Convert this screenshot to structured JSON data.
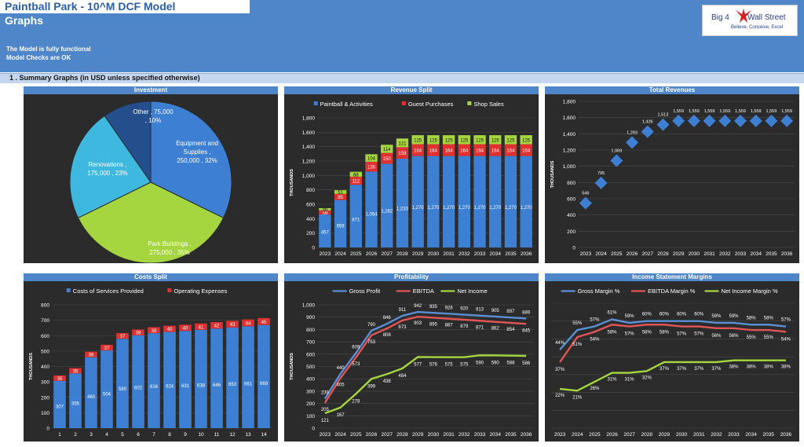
{
  "header": {
    "title": "Paintball Park - 10^M DCF Model",
    "subtitle": "Graphs",
    "status_line_1": "The Model is fully functional",
    "status_line_2": "Model Checks are OK",
    "logo": {
      "left_text": "Big 4",
      "right_text": "Wall Street",
      "tagline": "Believe, Conceive, Excel",
      "icon": "eagle-icon",
      "color": "#1f3e8f",
      "accent": "#d42020"
    },
    "color": "#4f85c9"
  },
  "section": {
    "title": "1 .  Summary Graphs (in USD unless specified otherwise)"
  },
  "panels": {
    "investment": {
      "title": "Investment"
    },
    "revenue_split": {
      "title": "Revenue Split"
    },
    "total_revenues": {
      "title": "Total Revenues"
    },
    "costs_split": {
      "title": "Costs Split"
    },
    "profitability": {
      "title": "Profitability"
    },
    "income_margins": {
      "title": "Income Statement Margins"
    }
  },
  "chart_data": [
    {
      "id": "investment",
      "type": "pie",
      "title": "Investment",
      "slices": [
        {
          "label": "Equipment and Supplies",
          "value": 250000,
          "percent": "32%",
          "color": "#3d7fd2"
        },
        {
          "label": "Park Buildings",
          "value": 275000,
          "percent": "35%",
          "color": "#a6d63f"
        },
        {
          "label": "Renovations",
          "value": 175000,
          "percent": "23%",
          "color": "#3fb8df"
        },
        {
          "label": "Other",
          "value": 75000,
          "percent": "10%",
          "color": "#254f8c"
        }
      ],
      "data_labels": [
        [
          "Equipment and",
          "Supplies ,",
          "250,000 , 32%"
        ],
        [
          "Park Buildings ,",
          "275,000 , 35%"
        ],
        [
          "Renovations ,",
          "175,000 , 23%"
        ],
        [
          "Other , 75,000",
          ", 10%"
        ]
      ]
    },
    {
      "id": "revenue_split",
      "type": "bar",
      "stacked": true,
      "ylabel": "THOUSANDS",
      "ylim": [
        0,
        1800
      ],
      "yticks": [
        "0",
        "200",
        "400",
        "600",
        "800",
        "1,000",
        "1,200",
        "1,400",
        "1,600",
        "1,800"
      ],
      "legend": "top",
      "categories": [
        "2023",
        "2024",
        "2025",
        "2026",
        "2027",
        "2028",
        "2029",
        "2030",
        "2031",
        "2032",
        "2033",
        "2034",
        "2035",
        "2036"
      ],
      "series": [
        {
          "name": "Paintball & Activities",
          "color": "#3d7fd2",
          "values": [
            457,
            659,
            871,
            1054,
            1162,
            1233,
            1270,
            1270,
            1270,
            1270,
            1270,
            1270,
            1270,
            1270
          ],
          "labels": [
            "457",
            "659",
            "871",
            "1,054",
            "1,162",
            "1,233",
            "1,270",
            "1,270",
            "1,270",
            "1,270",
            "1,270",
            "1,270",
            "1,270",
            "1,270"
          ]
        },
        {
          "name": "Guest Purchases",
          "color": "#e03030",
          "values": [
            59,
            85,
            112,
            136,
            150,
            159,
            164,
            164,
            164,
            164,
            164,
            164,
            164,
            164
          ],
          "labels": [
            "59",
            "85",
            "112",
            "136",
            "150",
            "159",
            "164",
            "164",
            "164",
            "164",
            "164",
            "164",
            "164",
            "164"
          ]
        },
        {
          "name": "Shop Sales",
          "color": "#a6d63f",
          "values": [
            30,
            51,
            68,
            104,
            114,
            121,
            125,
            125,
            125,
            125,
            125,
            125,
            125,
            125
          ],
          "labels": [
            "30",
            "51",
            "68",
            "104",
            "114",
            "121",
            "125",
            "125",
            "125",
            "125",
            "125",
            "125",
            "125",
            "125"
          ]
        }
      ]
    },
    {
      "id": "total_revenues",
      "type": "scatter",
      "ylabel": "THOUSANDS",
      "ylim": [
        0,
        1800
      ],
      "yticks": [
        "0",
        "200",
        "400",
        "600",
        "800",
        "1,000",
        "1,200",
        "1,400",
        "1,600",
        "1,800"
      ],
      "categories": [
        "2023",
        "2024",
        "2025",
        "2026",
        "2027",
        "2028",
        "2029",
        "2030",
        "2031",
        "2032",
        "2033",
        "2034",
        "2035",
        "2036"
      ],
      "series": [
        {
          "name": "Total Revenues",
          "color": "#3d7fd2",
          "values": [
            546,
            795,
            1069,
            1293,
            1426,
            1513,
            1559,
            1559,
            1559,
            1559,
            1559,
            1559,
            1559,
            1559
          ],
          "labels": [
            "546",
            "795",
            "1,069",
            "1,293",
            "1,426",
            "1,513",
            "1,559",
            "1,559",
            "1,559",
            "1,559",
            "1,559",
            "1,559",
            "1,559",
            "1,559"
          ]
        }
      ]
    },
    {
      "id": "costs_split",
      "type": "bar",
      "stacked": true,
      "ylabel": "THOUSANDS",
      "ylim": [
        0,
        800
      ],
      "yticks": [
        "0",
        "100",
        "200",
        "300",
        "400",
        "500",
        "600",
        "700",
        "800"
      ],
      "legend": "top",
      "categories": [
        "1",
        "2",
        "3",
        "4",
        "5",
        "6",
        "7",
        "8",
        "9",
        "10",
        "11",
        "12",
        "13",
        "14"
      ],
      "series": [
        {
          "name": "Costs of Services Provided",
          "color": "#3d7fd2",
          "values": [
            307,
            355,
            460,
            504,
            580,
            602,
            616,
            624,
            631,
            638,
            646,
            653,
            661,
            669
          ],
          "labels": [
            "307",
            "355",
            "460",
            "504",
            "580",
            "602",
            "616",
            "624",
            "631",
            "638",
            "646",
            "653",
            "661",
            "669"
          ]
        },
        {
          "name": "Operating Expenses",
          "color": "#e03030",
          "values": [
            35,
            35,
            36,
            37,
            37,
            38,
            39,
            40,
            40,
            41,
            42,
            43,
            44,
            45
          ],
          "labels": [
            "35",
            "35",
            "36",
            "37",
            "37",
            "38",
            "39",
            "40",
            "40",
            "41",
            "42",
            "43",
            "44",
            "45"
          ]
        }
      ]
    },
    {
      "id": "profitability",
      "type": "line",
      "ylabel": "THOUSANDS",
      "ylim": [
        0,
        1000
      ],
      "yticks": [
        "0",
        "100",
        "200",
        "300",
        "400",
        "500",
        "600",
        "700",
        "800",
        "900",
        "1,000"
      ],
      "legend": "top",
      "categories": [
        "2023",
        "2024",
        "2025",
        "2026",
        "2027",
        "2028",
        "2029",
        "2030",
        "2031",
        "2032",
        "2033",
        "2034",
        "2035",
        "2036"
      ],
      "series": [
        {
          "name": "Gross Profit",
          "color": "#5a8fd6",
          "values": [
            239,
            440,
            609,
            790,
            846,
            911,
            942,
            935,
            928,
            920,
            913,
            905,
            897,
            889
          ],
          "labels": [
            "239",
            "440",
            "609",
            "790",
            "846",
            "911",
            "942",
            "935",
            "928",
            "920",
            "913",
            "905",
            "897",
            "889"
          ]
        },
        {
          "name": "EBITDA",
          "color": "#e05555",
          "values": [
            205,
            405,
            573,
            753,
            808,
            873,
            903,
            895,
            887,
            879,
            871,
            862,
            854,
            845
          ],
          "labels": [
            "205",
            "405",
            "573",
            "753",
            "808",
            "873",
            "903",
            "895",
            "887",
            "879",
            "871",
            "862",
            "854",
            "845"
          ]
        },
        {
          "name": "Net Income",
          "color": "#a6d63f",
          "values": [
            121,
            167,
            278,
            399,
            438,
            484,
            577,
            576,
            575,
            575,
            590,
            590,
            588,
            586
          ],
          "labels": [
            "121",
            "167",
            "278",
            "399",
            "438",
            "484",
            "577",
            "576",
            "575",
            "575",
            "590",
            "590",
            "588",
            "586"
          ]
        }
      ]
    },
    {
      "id": "income_margins",
      "type": "line",
      "ylim": [
        0,
        70
      ],
      "legend": "top",
      "categories": [
        "2023",
        "2024",
        "2025",
        "2026",
        "2027",
        "2028",
        "2029",
        "2030",
        "2031",
        "2032",
        "2033",
        "2034",
        "2035",
        "2036"
      ],
      "series": [
        {
          "name": "Gross Margin %",
          "color": "#5a8fd6",
          "values": [
            44,
            55,
            57,
            61,
            59,
            60,
            60,
            60,
            60,
            59,
            59,
            58,
            58,
            57
          ],
          "labels": [
            "44%",
            "55%",
            "57%",
            "61%",
            "59%",
            "60%",
            "60%",
            "60%",
            "60%",
            "59%",
            "59%",
            "58%",
            "58%",
            "57%"
          ]
        },
        {
          "name": "EBITDA Margin %",
          "color": "#e05555",
          "values": [
            37,
            51,
            54,
            58,
            57,
            58,
            58,
            57,
            57,
            56,
            56,
            55,
            55,
            54
          ],
          "labels": [
            "37%",
            "51%",
            "54%",
            "58%",
            "57%",
            "58%",
            "58%",
            "57%",
            "57%",
            "56%",
            "56%",
            "55%",
            "55%",
            "54%"
          ]
        },
        {
          "name": "Net Income Margin %",
          "color": "#a6d63f",
          "values": [
            22,
            21,
            26,
            31,
            31,
            32,
            37,
            37,
            37,
            37,
            38,
            38,
            38,
            38
          ],
          "labels": [
            "22%",
            "21%",
            "26%",
            "31%",
            "31%",
            "32%",
            "37%",
            "37%",
            "37%",
            "37%",
            "38%",
            "38%",
            "38%",
            "38%"
          ]
        }
      ]
    }
  ]
}
